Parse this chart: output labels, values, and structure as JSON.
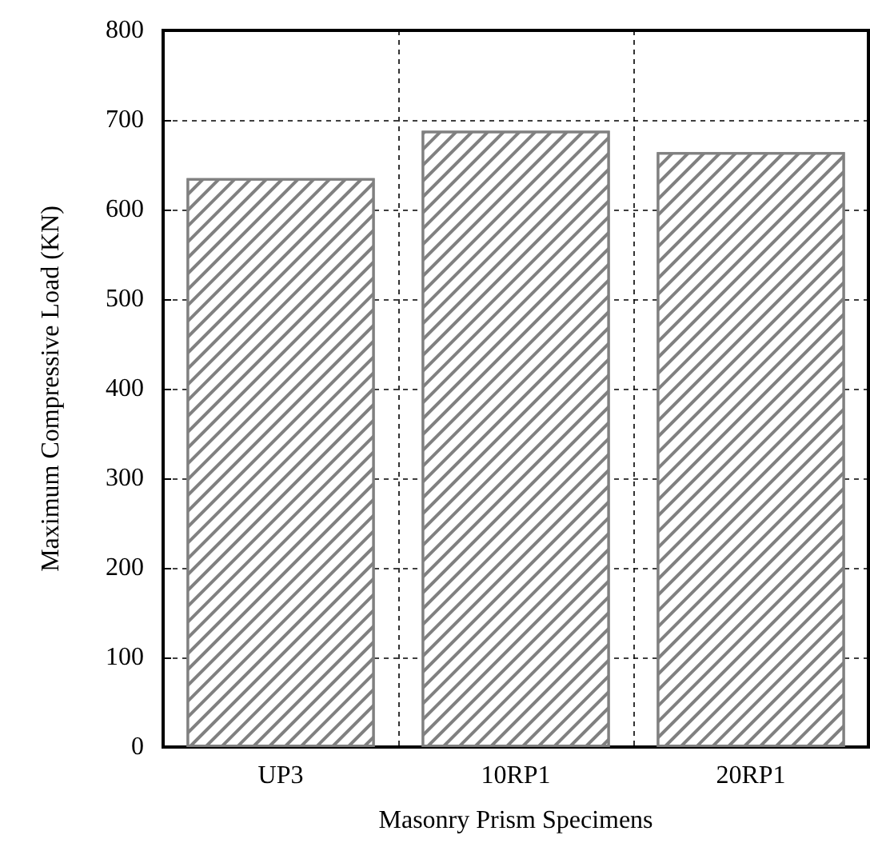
{
  "chart_data": {
    "type": "bar",
    "xlabel": "Masonry Prism Specimens",
    "ylabel": "Maximum Compressive Load (KN)",
    "categories": [
      "UP3",
      "10RP1",
      "20RP1"
    ],
    "values": [
      635,
      688,
      664
    ],
    "color": "#808080",
    "ylim": [
      0,
      800
    ],
    "yticks": [
      0,
      100,
      200,
      300,
      400,
      500,
      600,
      700,
      800
    ],
    "grid": true
  }
}
